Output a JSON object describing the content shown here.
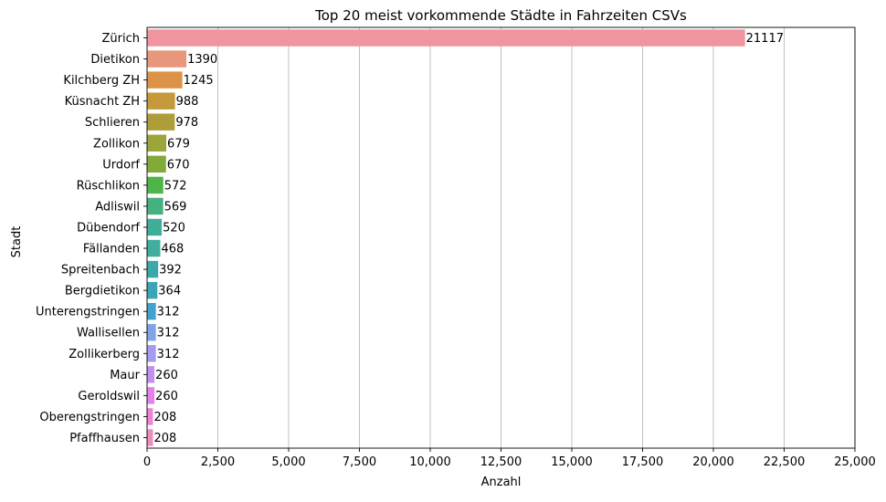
{
  "chart_data": {
    "type": "bar",
    "orientation": "horizontal",
    "title": "Top 20 meist vorkommende Städte in Fahrzeiten CSVs",
    "xlabel": "Anzahl",
    "ylabel": "Stadt",
    "xlim": [
      0,
      25000
    ],
    "xticks": [
      0,
      2500,
      5000,
      7500,
      10000,
      12500,
      15000,
      17500,
      20000,
      22500,
      25000
    ],
    "xtick_labels": [
      "0",
      "2,500",
      "5,000",
      "7,500",
      "10,000",
      "12,500",
      "15,000",
      "17,500",
      "20,000",
      "22,500",
      "25,000"
    ],
    "grid": "vertical",
    "categories": [
      "Zürich",
      "Dietikon",
      "Kilchberg ZH",
      "Küsnacht ZH",
      "Schlieren",
      "Zollikon",
      "Urdorf",
      "Rüschlikon",
      "Adliswil",
      "Dübendorf",
      "Fällanden",
      "Spreitenbach",
      "Bergdietikon",
      "Unterengstringen",
      "Wallisellen",
      "Zollikerberg",
      "Maur",
      "Geroldswil",
      "Oberengstringen",
      "Pfaffhausen"
    ],
    "values": [
      21117,
      1390,
      1245,
      988,
      978,
      679,
      670,
      572,
      569,
      520,
      468,
      392,
      364,
      312,
      312,
      312,
      260,
      260,
      208,
      208
    ],
    "data_labels": [
      "21117",
      "1390",
      "1245",
      "988",
      "978",
      "679",
      "670",
      "572",
      "569",
      "520",
      "468",
      "392",
      "364",
      "312",
      "312",
      "312",
      "260",
      "260",
      "208",
      "208"
    ],
    "colors": [
      "#f0949f",
      "#e8967c",
      "#dc9347",
      "#c69a3b",
      "#ad9e39",
      "#9aa53a",
      "#81aa3a",
      "#4cb448",
      "#46b180",
      "#3fae99",
      "#40ad9e",
      "#3aa9a8",
      "#3ca6b5",
      "#42a2ce",
      "#7fa5e7",
      "#a49cef",
      "#c48ff2",
      "#e482e9",
      "#f182d4",
      "#f08bbb"
    ]
  }
}
